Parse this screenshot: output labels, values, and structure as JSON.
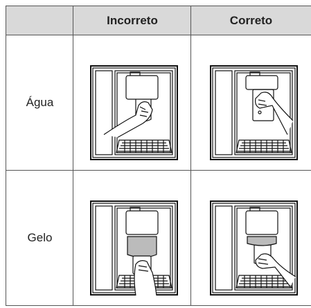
{
  "table": {
    "columns": [
      "Incorreto",
      "Correto"
    ],
    "rows": [
      [
        "Água"
      ],
      [
        "Gelo"
      ]
    ]
  }
}
